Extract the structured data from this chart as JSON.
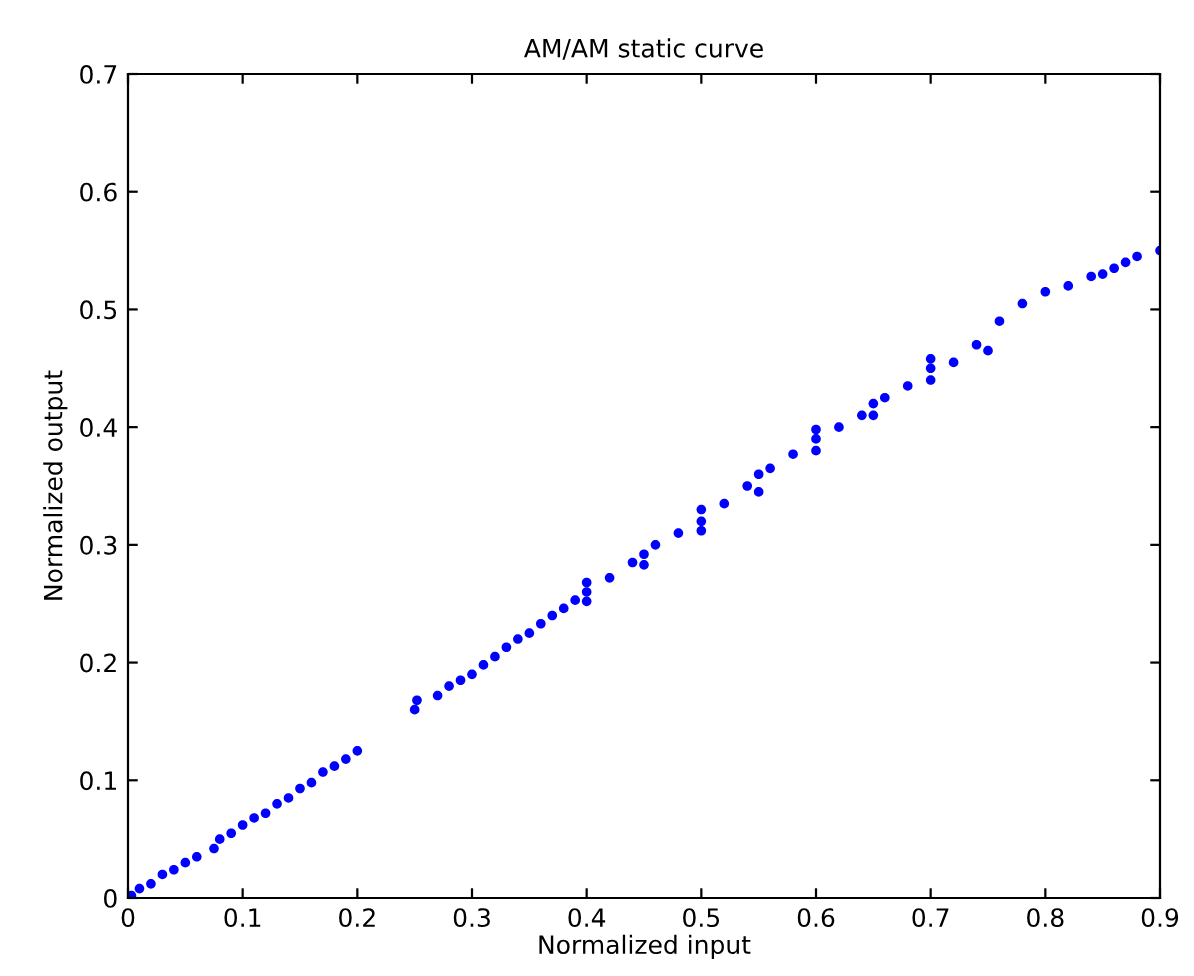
{
  "chart_data": {
    "type": "scatter",
    "title": "AM/AM static curve",
    "xlabel": "Normalized input",
    "ylabel": "Normalized output",
    "xlim": [
      0,
      0.9
    ],
    "xticks": [
      0,
      0.1,
      0.2,
      0.3,
      0.4,
      0.5,
      0.6,
      0.7,
      0.8,
      0.9
    ],
    "ylim": [
      0,
      0.7
    ],
    "yticks": [
      0,
      0.1,
      0.2,
      0.3,
      0.4,
      0.5,
      0.6,
      0.7
    ],
    "grid": false,
    "marker": "circle",
    "series": [
      {
        "color": "#0000ff",
        "x": [
          0.003,
          0.01,
          0.02,
          0.03,
          0.04,
          0.05,
          0.06,
          0.075,
          0.08,
          0.09,
          0.1,
          0.11,
          0.12,
          0.13,
          0.14,
          0.15,
          0.16,
          0.17,
          0.18,
          0.19,
          0.2,
          0.25,
          0.252,
          0.27,
          0.28,
          0.29,
          0.3,
          0.31,
          0.32,
          0.33,
          0.34,
          0.35,
          0.36,
          0.37,
          0.38,
          0.39,
          0.4,
          0.4,
          0.4,
          0.42,
          0.44,
          0.45,
          0.45,
          0.46,
          0.48,
          0.5,
          0.5,
          0.5,
          0.52,
          0.54,
          0.55,
          0.55,
          0.56,
          0.58,
          0.6,
          0.6,
          0.6,
          0.62,
          0.64,
          0.65,
          0.65,
          0.66,
          0.68,
          0.7,
          0.7,
          0.7,
          0.72,
          0.74,
          0.75,
          0.76,
          0.78,
          0.8,
          0.82,
          0.84,
          0.85,
          0.86,
          0.87,
          0.88,
          0.9
        ],
        "values": [
          0.002,
          0.008,
          0.012,
          0.02,
          0.024,
          0.03,
          0.035,
          0.042,
          0.05,
          0.055,
          0.062,
          0.068,
          0.072,
          0.08,
          0.085,
          0.093,
          0.098,
          0.107,
          0.112,
          0.118,
          0.125,
          0.16,
          0.168,
          0.172,
          0.18,
          0.185,
          0.19,
          0.198,
          0.205,
          0.213,
          0.22,
          0.225,
          0.233,
          0.24,
          0.246,
          0.253,
          0.26,
          0.252,
          0.268,
          0.272,
          0.285,
          0.292,
          0.283,
          0.3,
          0.31,
          0.32,
          0.33,
          0.312,
          0.335,
          0.35,
          0.36,
          0.345,
          0.365,
          0.377,
          0.39,
          0.38,
          0.398,
          0.4,
          0.41,
          0.42,
          0.41,
          0.425,
          0.435,
          0.45,
          0.44,
          0.458,
          0.455,
          0.47,
          0.465,
          0.49,
          0.505,
          0.515,
          0.52,
          0.528,
          0.53,
          0.535,
          0.54,
          0.545,
          0.55
        ]
      }
    ]
  }
}
